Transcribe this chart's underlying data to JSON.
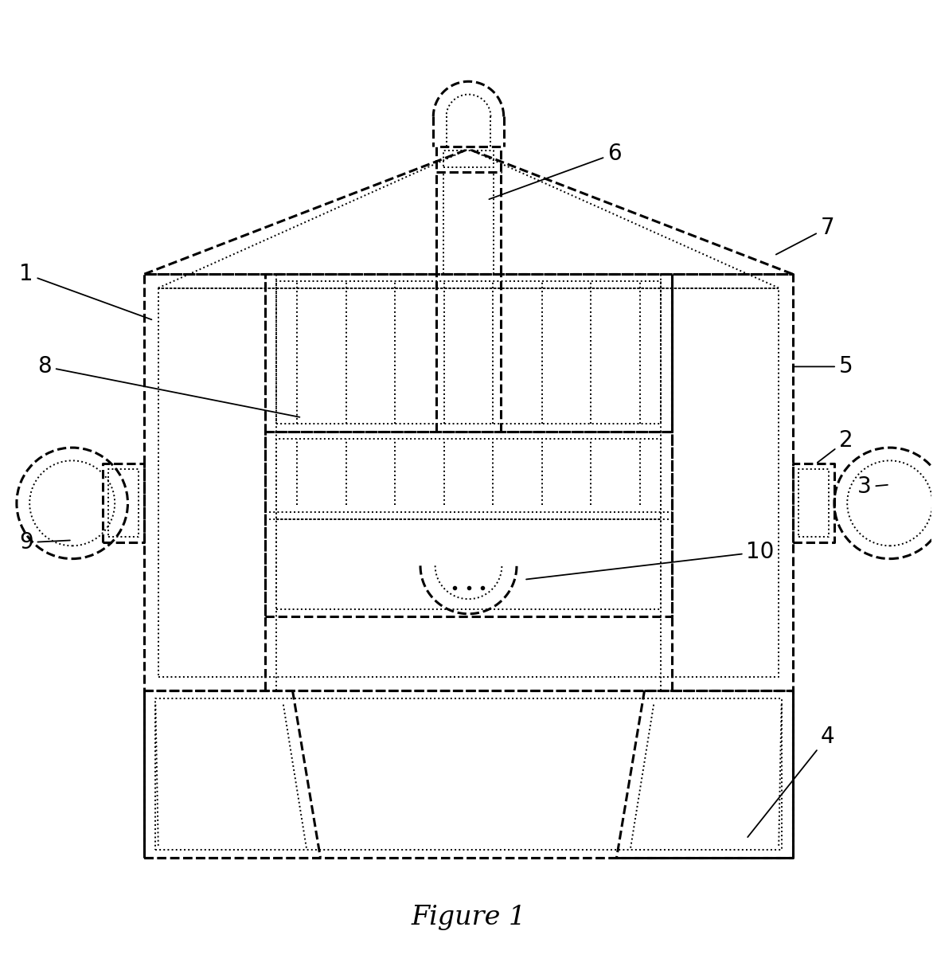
{
  "figure_title": "Figure 1",
  "background_color": "#ffffff",
  "line_color": "#000000",
  "lw_thick": 2.2,
  "lw_thin": 1.4,
  "label_fontsize": 20,
  "ann_color": "#000000"
}
